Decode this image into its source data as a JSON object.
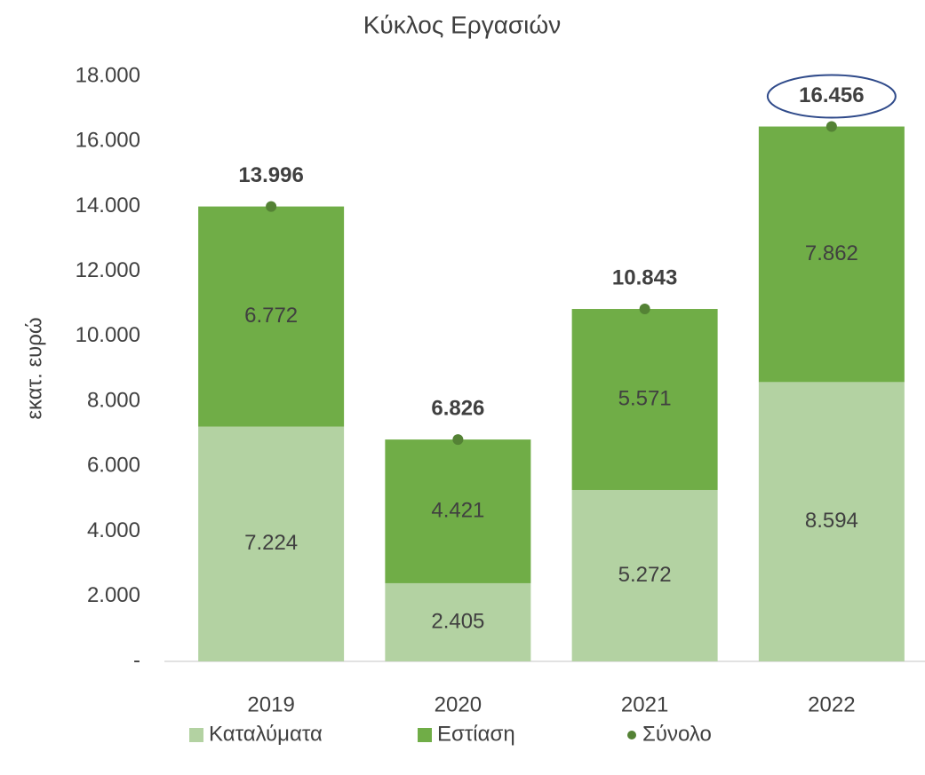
{
  "chart_data": {
    "type": "bar",
    "title": "Κύκλος Εργασιών",
    "y_label": "εκατ. ευρώ",
    "categories": [
      "2019",
      "2020",
      "2021",
      "2022"
    ],
    "stacked": true,
    "series": [
      {
        "name": "Καταλύματα",
        "color": "#b3d2a2",
        "values": [
          7224,
          2405,
          5272,
          8594
        ],
        "value_labels": [
          "7.224",
          "2.405",
          "5.272",
          "8.594"
        ]
      },
      {
        "name": "Εστίαση",
        "color": "#70ad47",
        "values": [
          6772,
          4421,
          5571,
          7862
        ],
        "value_labels": [
          "6.772",
          "4.421",
          "5.571",
          "7.862"
        ]
      },
      {
        "name": "Σύνολο",
        "type": "scatter",
        "color": "#548235",
        "values": [
          13996,
          6826,
          10843,
          16456
        ],
        "value_labels": [
          "13.996",
          "6.826",
          "10.843",
          "16.456"
        ]
      }
    ],
    "ylim": [
      0,
      18000
    ],
    "yticks": [
      {
        "value": 0,
        "label": "-"
      },
      {
        "value": 2000,
        "label": "2.000"
      },
      {
        "value": 4000,
        "label": "4.000"
      },
      {
        "value": 6000,
        "label": "6.000"
      },
      {
        "value": 8000,
        "label": "8.000"
      },
      {
        "value": 10000,
        "label": "10.000"
      },
      {
        "value": 12000,
        "label": "12.000"
      },
      {
        "value": 14000,
        "label": "14.000"
      },
      {
        "value": 16000,
        "label": "16.000"
      },
      {
        "value": 18000,
        "label": "18.000"
      }
    ],
    "grid": false,
    "legend": "bottom"
  }
}
